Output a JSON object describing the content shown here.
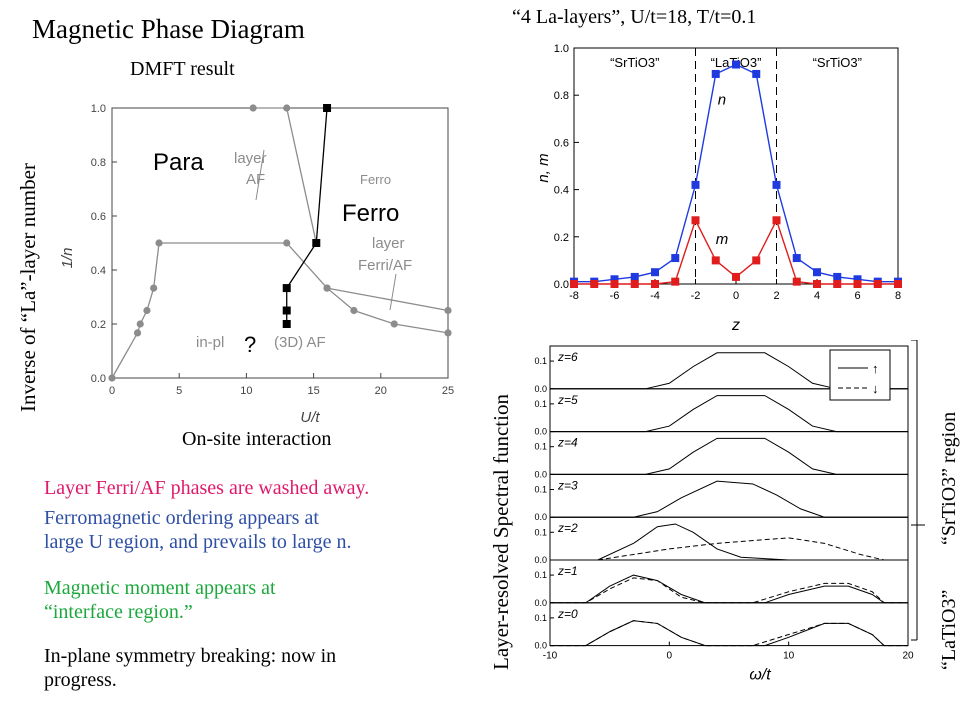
{
  "slide": {
    "title": "Magnetic Phase Diagram",
    "subtitle": "DMFT result",
    "y_axis_caption": "Inverse of “La”-layer number",
    "x_axis_caption": "On-site interaction",
    "notes": [
      {
        "text": "Layer Ferri/AF phases are washed away.",
        "color": "#e0196a"
      },
      {
        "text": "Ferromagnetic ordering appears at",
        "color": "#2d4fa4"
      },
      {
        "text": "large U region, and prevails to large n.",
        "color": "#2d4fa4"
      },
      {
        "text": "Magnetic moment appears at",
        "color": "#1ca83c"
      },
      {
        "text": "“interface region.”",
        "color": "#1ca83c"
      },
      {
        "text": "In-plane symmetry breaking: now in",
        "color": "#000000"
      },
      {
        "text": "progress.",
        "color": "#000000"
      }
    ],
    "right_title": "“4 La-layers”, U/t=18, T/t=0.1",
    "spectral_y_caption": "Layer-resolved Spectral function",
    "region_upper": "“SrTiO3” region",
    "region_lower": "“LaTiO3”"
  },
  "chart_data": [
    {
      "type": "line",
      "xlabel": "U/t",
      "ylabel": "1/n",
      "xlim": [
        0,
        25
      ],
      "ylim": [
        0,
        1.0
      ],
      "xticks": [
        "0",
        "5",
        "10",
        "15",
        "20",
        "25"
      ],
      "yticks": [
        "0.0",
        "0.2",
        "0.4",
        "0.6",
        "0.8",
        "1.0"
      ],
      "phase_labels": {
        "para": "Para",
        "ferro": "Ferro",
        "question": "?",
        "layer_af": [
          "layer",
          "AF"
        ],
        "ferro_old": "Ferro",
        "layer_ferri": [
          "layer",
          "Ferri/AF"
        ],
        "inpl": "in-pl",
        "af3d": "(3D) AF"
      },
      "series": [
        {
          "name": "",
          "marker": "circle",
          "color": "#8c8c8c",
          "x": [
            0,
            1.9,
            2.1,
            2.6,
            3.1,
            3.5,
            13.0,
            16.0,
            18.0,
            21.0,
            25.0
          ],
          "y": [
            0,
            0.167,
            0.2,
            0.25,
            0.333,
            0.5,
            0.5,
            0.333,
            0.25,
            0.2,
            0.167
          ]
        },
        {
          "name": "",
          "marker": "circle",
          "color": "#8c8c8c",
          "x": [
            10.5,
            13.0,
            15.2
          ],
          "y": [
            1.0,
            1.0,
            0.5
          ]
        },
        {
          "name": "",
          "marker": "circle",
          "color": "#8c8c8c",
          "x": [
            16.0,
            25.0
          ],
          "y": [
            0.333,
            0.25
          ]
        },
        {
          "name": "",
          "marker": "square",
          "color": "#000000",
          "x": [
            16.0,
            15.2,
            13.0,
            13.0,
            13.0
          ],
          "y": [
            1.0,
            0.5,
            0.333,
            0.25,
            0.2
          ]
        }
      ]
    },
    {
      "type": "line",
      "xlabel": "z",
      "ylabel": "n, m",
      "xlim": [
        -8,
        8
      ],
      "ylim": [
        0,
        1.0
      ],
      "xticks": [
        "-8",
        "-6",
        "-4",
        "-2",
        "0",
        "2",
        "4",
        "6",
        "8"
      ],
      "yticks": [
        "0.0",
        "0.2",
        "0.4",
        "0.6",
        "0.8",
        "1.0"
      ],
      "region_labels": [
        "“SrTiO3”",
        "“LaTiO3”",
        "“SrTiO3”"
      ],
      "boundaries": [
        -2,
        2
      ],
      "series": [
        {
          "name": "n",
          "color": "#1f3be0",
          "x": [
            -8,
            -7,
            -6,
            -5,
            -4,
            -3,
            -2,
            -1,
            0,
            1,
            2,
            3,
            4,
            5,
            6,
            7,
            8
          ],
          "y": [
            0.01,
            0.01,
            0.02,
            0.03,
            0.05,
            0.11,
            0.42,
            0.89,
            0.93,
            0.89,
            0.42,
            0.11,
            0.05,
            0.03,
            0.02,
            0.01,
            0.01
          ]
        },
        {
          "name": "m",
          "color": "#e01c1c",
          "x": [
            -8,
            -7,
            -6,
            -5,
            -4,
            -3,
            -2,
            -1,
            0,
            1,
            2,
            3,
            4,
            5,
            6,
            7,
            8
          ],
          "y": [
            0,
            0,
            0,
            0,
            0,
            0.01,
            0.27,
            0.1,
            0.03,
            0.1,
            0.27,
            0.01,
            0,
            0,
            0,
            0,
            0
          ]
        }
      ]
    },
    {
      "type": "line",
      "xlabel": "ω/t",
      "xlim": [
        -10,
        20
      ],
      "xticks": [
        "-10",
        "0",
        "10",
        "20"
      ],
      "yticks": [
        "0.0",
        "0.1"
      ],
      "legend": [
        "↑",
        "↓"
      ],
      "panels": [
        {
          "label": "z=6",
          "up": [
            [
              -10,
              0
            ],
            [
              -2,
              0
            ],
            [
              0,
              0.02
            ],
            [
              2,
              0.08
            ],
            [
              4,
              0.13
            ],
            [
              8,
              0.13
            ],
            [
              10,
              0.08
            ],
            [
              12,
              0.02
            ],
            [
              14,
              0
            ],
            [
              20,
              0
            ]
          ],
          "down": null
        },
        {
          "label": "z=5",
          "up": [
            [
              -10,
              0
            ],
            [
              -2,
              0
            ],
            [
              0,
              0.02
            ],
            [
              2,
              0.08
            ],
            [
              4,
              0.13
            ],
            [
              8,
              0.13
            ],
            [
              10,
              0.08
            ],
            [
              12,
              0.02
            ],
            [
              14,
              0
            ],
            [
              20,
              0
            ]
          ],
          "down": null
        },
        {
          "label": "z=4",
          "up": [
            [
              -10,
              0
            ],
            [
              -2,
              0
            ],
            [
              0,
              0.02
            ],
            [
              2,
              0.08
            ],
            [
              4,
              0.13
            ],
            [
              8,
              0.13
            ],
            [
              10,
              0.08
            ],
            [
              12,
              0.02
            ],
            [
              14,
              0
            ],
            [
              20,
              0
            ]
          ],
          "down": null
        },
        {
          "label": "z=3",
          "up": [
            [
              -10,
              0
            ],
            [
              -3,
              0
            ],
            [
              -1,
              0.02
            ],
            [
              1,
              0.07
            ],
            [
              4,
              0.13
            ],
            [
              7,
              0.12
            ],
            [
              9,
              0.08
            ],
            [
              11,
              0.03
            ],
            [
              13,
              0
            ],
            [
              20,
              0
            ]
          ],
          "down": null
        },
        {
          "label": "z=2",
          "up": [
            [
              -10,
              0
            ],
            [
              -6,
              0
            ],
            [
              -3,
              0.06
            ],
            [
              -1,
              0.12
            ],
            [
              0.5,
              0.13
            ],
            [
              2,
              0.1
            ],
            [
              4,
              0.04
            ],
            [
              6,
              0.01
            ],
            [
              10,
              0
            ],
            [
              20,
              0
            ]
          ],
          "down": [
            [
              -10,
              0
            ],
            [
              -6,
              0
            ],
            [
              -3,
              0.02
            ],
            [
              0,
              0.04
            ],
            [
              4,
              0.06
            ],
            [
              10,
              0.08
            ],
            [
              13,
              0.06
            ],
            [
              16,
              0.02
            ],
            [
              18,
              0
            ],
            [
              20,
              0
            ]
          ]
        },
        {
          "label": "z=1",
          "up": [
            [
              -10,
              0
            ],
            [
              -7,
              0
            ],
            [
              -5,
              0.06
            ],
            [
              -3,
              0.1
            ],
            [
              -1,
              0.08
            ],
            [
              1,
              0.03
            ],
            [
              3,
              0
            ],
            [
              8,
              0
            ],
            [
              10,
              0.03
            ],
            [
              13,
              0.06
            ],
            [
              15,
              0.06
            ],
            [
              17,
              0.03
            ],
            [
              18,
              0
            ],
            [
              20,
              0
            ]
          ],
          "down": [
            [
              -10,
              0
            ],
            [
              -7,
              0
            ],
            [
              -5,
              0.05
            ],
            [
              -3,
              0.09
            ],
            [
              -1,
              0.08
            ],
            [
              1,
              0.02
            ],
            [
              3,
              0
            ],
            [
              7,
              0
            ],
            [
              10,
              0.04
            ],
            [
              13,
              0.07
            ],
            [
              15,
              0.07
            ],
            [
              17,
              0.04
            ],
            [
              18,
              0
            ],
            [
              20,
              0
            ]
          ]
        },
        {
          "label": "z=0",
          "up": [
            [
              -10,
              0
            ],
            [
              -7,
              0
            ],
            [
              -5,
              0.05
            ],
            [
              -3,
              0.09
            ],
            [
              -1,
              0.08
            ],
            [
              1,
              0.03
            ],
            [
              3,
              0
            ],
            [
              8,
              0
            ],
            [
              10,
              0.03
            ],
            [
              13,
              0.08
            ],
            [
              15,
              0.08
            ],
            [
              17,
              0.04
            ],
            [
              18,
              0
            ],
            [
              20,
              0
            ]
          ],
          "down": [
            [
              -10,
              0
            ],
            [
              -7,
              0
            ],
            [
              -5,
              0.05
            ],
            [
              -3,
              0.09
            ],
            [
              -1,
              0.08
            ],
            [
              1,
              0.03
            ],
            [
              3,
              0
            ],
            [
              7,
              0
            ],
            [
              10,
              0.04
            ],
            [
              13,
              0.08
            ],
            [
              15,
              0.08
            ],
            [
              17,
              0.04
            ],
            [
              18,
              0
            ],
            [
              20,
              0
            ]
          ]
        }
      ]
    }
  ]
}
